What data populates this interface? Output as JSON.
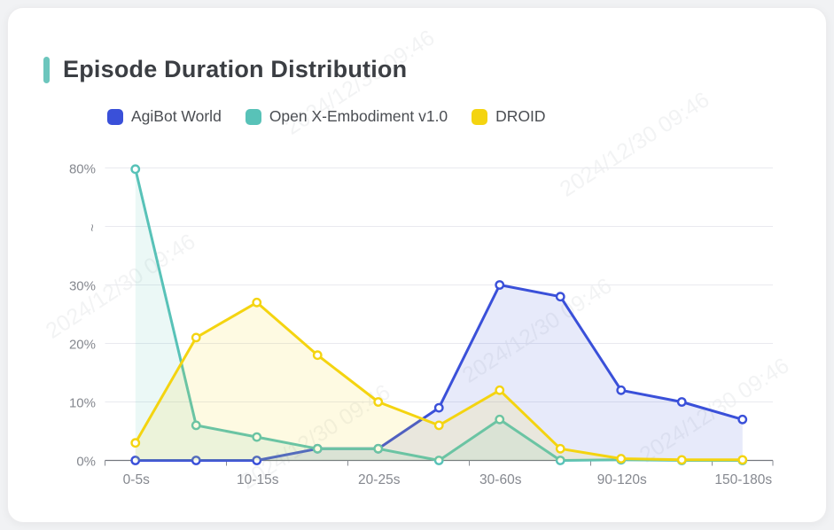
{
  "header": {
    "title": "Episode Duration Distribution",
    "accent_color": "#6cc6bd"
  },
  "watermark": {
    "text": "2024/12/30 09:46"
  },
  "chart_data": {
    "type": "line",
    "title": "Episode Duration Distribution",
    "area_fill": true,
    "grid": true,
    "legend_position": "top",
    "categories": [
      "0-5s",
      "",
      "10-15s",
      "",
      "20-25s",
      "",
      "30-60s",
      "",
      "90-120s",
      "",
      "150-180s"
    ],
    "x_tick_labels": [
      "0-5s",
      "10-15s",
      "20-25s",
      "30-60s",
      "90-120s",
      "150-180s"
    ],
    "ylabel": "",
    "xlabel": "",
    "y_axis_break": {
      "between": [
        30,
        80
      ],
      "symbol": "~"
    },
    "y_ticks": [
      {
        "label": "0%",
        "value": 0
      },
      {
        "label": "10%",
        "value": 10
      },
      {
        "label": "20%",
        "value": 20
      },
      {
        "label": "30%",
        "value": 30
      },
      {
        "label": "~",
        "value": 55,
        "axis_break": true
      },
      {
        "label": "80%",
        "value": 80
      }
    ],
    "series": [
      {
        "name": "AgiBot World",
        "color": "#3a50d9",
        "values": [
          0,
          0,
          0,
          2,
          2,
          9,
          30,
          28,
          12,
          10,
          7
        ]
      },
      {
        "name": "Open X-Embodiment v1.0",
        "color": "#58c2b8",
        "values": [
          79.5,
          6,
          4,
          2,
          2,
          0,
          7,
          0,
          0.1,
          0,
          0
        ]
      },
      {
        "name": "DROID",
        "color": "#f4d410",
        "values": [
          3,
          21,
          27,
          18,
          10,
          6,
          12,
          2,
          0.3,
          0.1,
          0.1
        ]
      }
    ]
  }
}
